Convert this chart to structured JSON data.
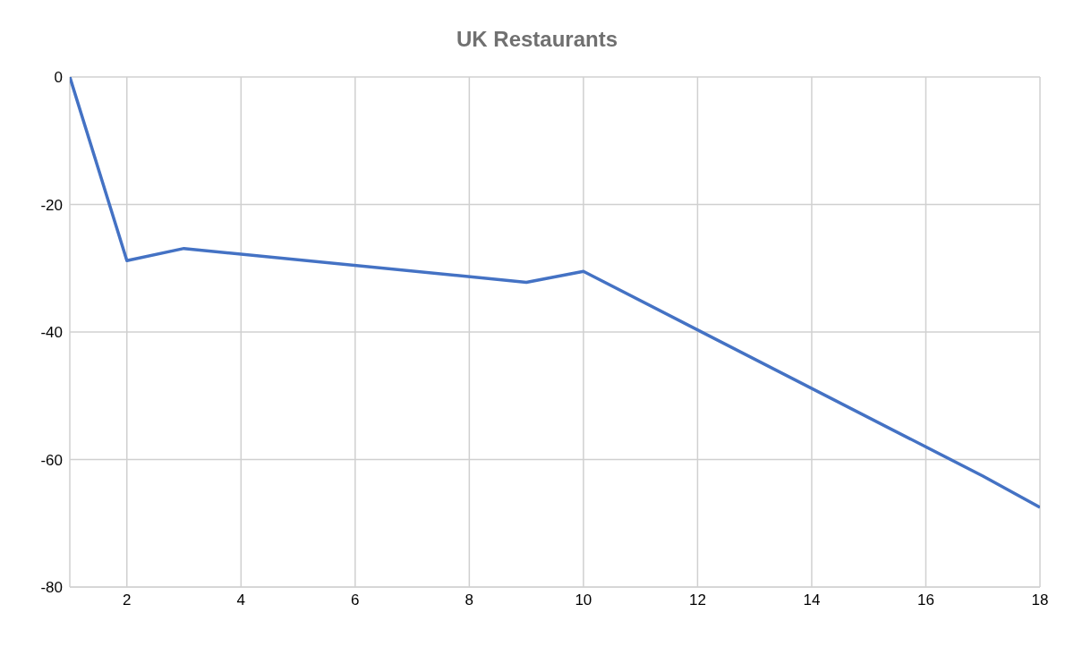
{
  "chart_data": {
    "type": "line",
    "title": "UK Restaurants",
    "x": [
      1,
      2,
      3,
      9,
      10,
      17,
      18
    ],
    "series": [
      {
        "color": "#4472c4",
        "values": [
          0,
          -28.8,
          -26.9,
          -32.2,
          -30.5,
          -62.6,
          -67.5
        ]
      }
    ],
    "xlim": [
      1,
      18
    ],
    "xticks": [
      2,
      4,
      6,
      8,
      10,
      12,
      14,
      16,
      18
    ],
    "ylim": [
      -80,
      0
    ],
    "yticks": [
      -80,
      -60,
      -40,
      -20,
      0
    ],
    "grid": true,
    "legend": false,
    "marker": "none",
    "line_style": "solid"
  }
}
